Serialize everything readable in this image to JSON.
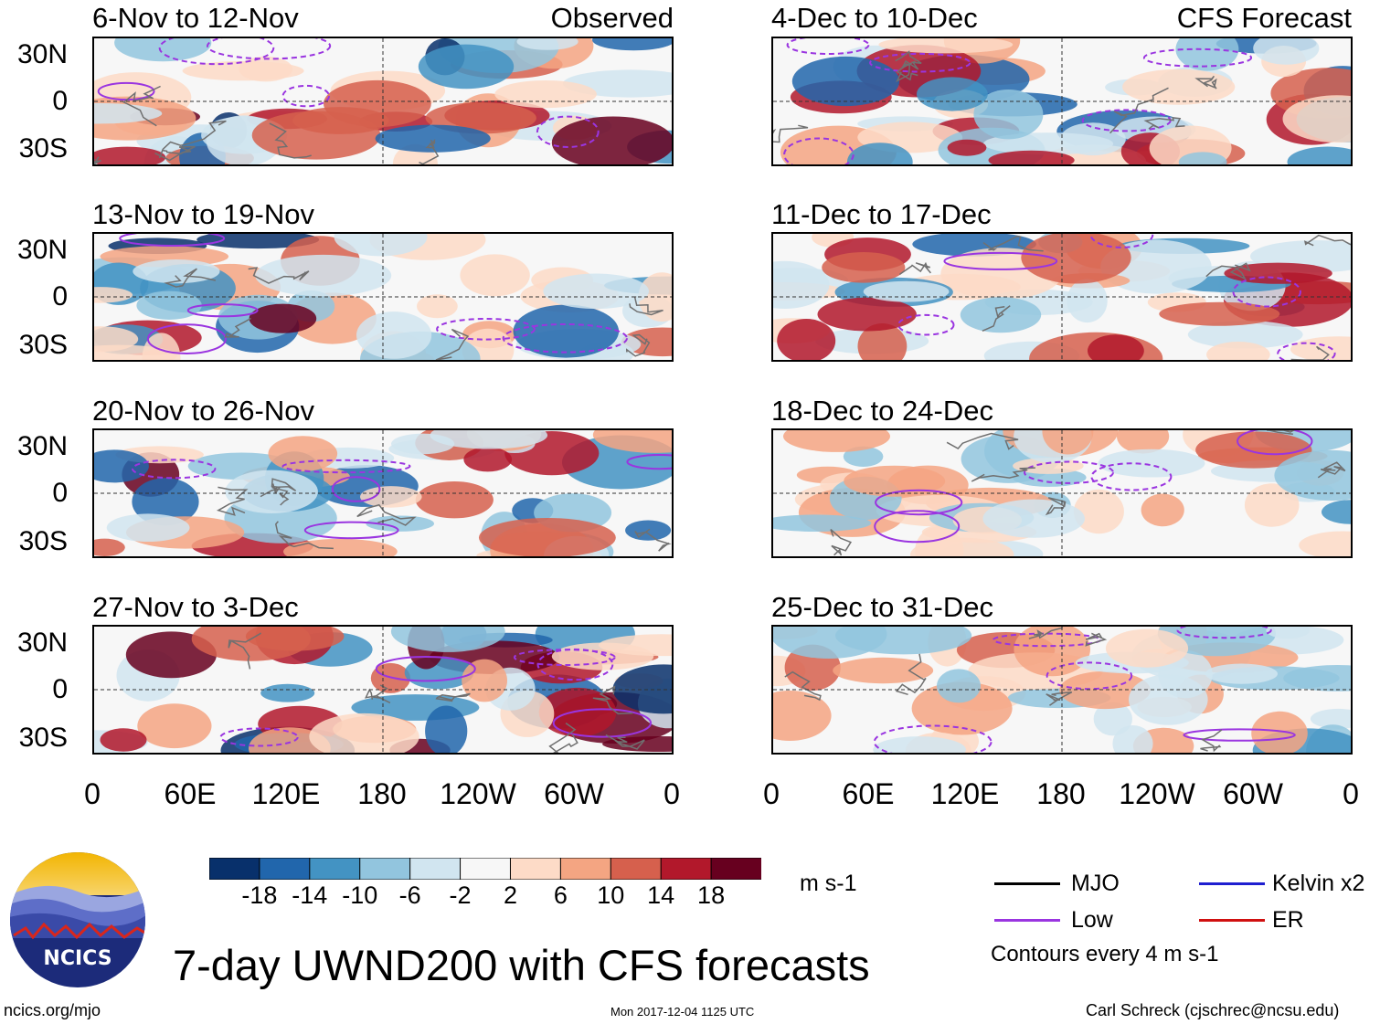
{
  "chart_data": {
    "type": "heatmap",
    "variable": "7-day UWND200 with CFS forecasts",
    "panels": [
      {
        "column": "left",
        "title": "6-Nov to 12-Nov",
        "label": "Observed"
      },
      {
        "column": "left",
        "title": "13-Nov to 19-Nov",
        "label": ""
      },
      {
        "column": "left",
        "title": "20-Nov to 26-Nov",
        "label": ""
      },
      {
        "column": "left",
        "title": "27-Nov to 3-Dec",
        "label": ""
      },
      {
        "column": "right",
        "title": "4-Dec to 10-Dec",
        "label": "CFS Forecast"
      },
      {
        "column": "right",
        "title": "11-Dec to 17-Dec",
        "label": ""
      },
      {
        "column": "right",
        "title": "18-Dec to 24-Dec",
        "label": ""
      },
      {
        "column": "right",
        "title": "25-Dec to 31-Dec",
        "label": ""
      }
    ],
    "y_tick_labels": [
      "30N",
      "0",
      "30S"
    ],
    "x_tick_labels": [
      "0",
      "60E",
      "120E",
      "180",
      "120W",
      "60W",
      "0"
    ],
    "colorbar": {
      "colors": [
        "#08306b",
        "#2166ac",
        "#4393c3",
        "#92c5de",
        "#d1e5f0",
        "#f7f7f7",
        "#fddbc7",
        "#f4a582",
        "#d6604d",
        "#b2182b",
        "#67001f"
      ],
      "tick_labels": [
        "-18",
        "-14",
        "-10",
        "-6",
        "-2",
        "2",
        "6",
        "10",
        "14",
        "18"
      ],
      "units": "m s-1"
    },
    "legend": [
      {
        "label": "MJO",
        "color": "#000000"
      },
      {
        "label": "Kelvin x2",
        "color": "#1f1fd0"
      },
      {
        "label": "Low",
        "color": "#9a35e0"
      },
      {
        "label": "ER",
        "color": "#d01010"
      }
    ],
    "contour_note": "Contours every 4 m s-1"
  },
  "brand": {
    "logo_text": "NCICS"
  },
  "footer": {
    "website": "ncics.org/mjo",
    "timestamp": "Mon 2017-12-04 1125 UTC",
    "author": "Carl Schreck (cjschrec@ncsu.edu)"
  }
}
